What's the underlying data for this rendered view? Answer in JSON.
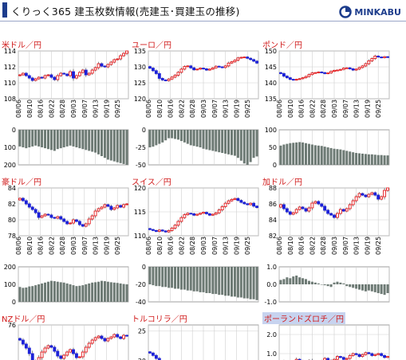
{
  "header": {
    "title": "くりっく365 建玉枚数情報(売建玉･買建玉の推移)",
    "brand": "MINKABU",
    "brand_color": "#1d3d8c"
  },
  "colors": {
    "up": "#e41a1c",
    "down": "#1d22d8",
    "wick": "#555555",
    "bar": "#6d7a74",
    "grid": "#cfcfcf",
    "title": "#d01818"
  },
  "x_labels": [
    "08/06",
    "08/10",
    "08/16",
    "08/22",
    "08/28",
    "09/03",
    "09/07",
    "09/13",
    "09/19",
    "09/25"
  ],
  "panels": [
    {
      "id": "usdjpy",
      "title": "米ドル／円",
      "price_ticks": [
        "114",
        "112",
        "110",
        "108"
      ],
      "price_range": [
        108,
        114
      ],
      "price_path": [
        110.9,
        111.0,
        111.2,
        110.9,
        110.6,
        110.3,
        110.5,
        110.7,
        110.6,
        110.9,
        111.0,
        110.7,
        110.4,
        110.9,
        111.2,
        111.1,
        110.9,
        111.4,
        110.6,
        110.9,
        111.3,
        111.6,
        111.0,
        111.2,
        111.6,
        111.9,
        112.4,
        112.1,
        112.0,
        112.3,
        112.6,
        112.9,
        113.0,
        113.4,
        113.7,
        114.2
      ],
      "volume_ticks": [
        "0",
        "100",
        "200"
      ],
      "volume_range": [
        0,
        200
      ],
      "volume_values": [
        95,
        100,
        105,
        100,
        95,
        90,
        95,
        100,
        105,
        110,
        115,
        120,
        110,
        105,
        100,
        95,
        90,
        95,
        100,
        105,
        110,
        115,
        120,
        125,
        130,
        140,
        150,
        160,
        170,
        175,
        180,
        185,
        190,
        195,
        200
      ]
    },
    {
      "id": "eurjpy",
      "title": "ユーロ／円",
      "price_ticks": [
        "135",
        "130",
        "125",
        "120"
      ],
      "price_range": [
        120,
        135
      ],
      "price_path": [
        130.1,
        129.6,
        128.8,
        127.9,
        126.4,
        125.9,
        125.7,
        126.2,
        126.8,
        127.4,
        128.3,
        129.3,
        130.1,
        130.3,
        129.7,
        129.1,
        129.3,
        129.6,
        129.4,
        129.0,
        129.3,
        129.7,
        130.2,
        130.0,
        129.8,
        130.3,
        131.2,
        131.6,
        132.1,
        132.8,
        133.0,
        133.1,
        132.7,
        132.3,
        131.8,
        131.2
      ],
      "volume_ticks": [
        "0",
        "-25",
        "-50"
      ],
      "volume_range": [
        -50,
        0
      ],
      "volume_values": [
        -25,
        -24,
        -22,
        -20,
        -18,
        -15,
        -12,
        -12,
        -13,
        -14,
        -16,
        -18,
        -20,
        -22,
        -23,
        -24,
        -25,
        -27,
        -28,
        -29,
        -30,
        -31,
        -32,
        -33,
        -34,
        -35,
        -36,
        -37,
        -40,
        -44,
        -48,
        -50,
        -46,
        -40,
        -38
      ]
    },
    {
      "id": "gbpjpy",
      "title": "ポンド／円",
      "price_ticks": [
        "150",
        "145",
        "140",
        "135"
      ],
      "price_range": [
        135,
        150
      ],
      "price_path": [
        143.2,
        142.9,
        142.1,
        141.6,
        141.1,
        140.9,
        141.1,
        141.3,
        141.6,
        142.0,
        142.6,
        143.1,
        143.2,
        143.4,
        143.2,
        142.9,
        143.1,
        143.6,
        143.9,
        144.0,
        144.2,
        144.6,
        144.7,
        144.4,
        144.0,
        144.3,
        144.8,
        145.3,
        146.0,
        146.9,
        147.6,
        148.4,
        148.1,
        147.9,
        148.2,
        148.0
      ],
      "volume_ticks": [
        "100",
        "50",
        "0"
      ],
      "volume_range": [
        0,
        100
      ],
      "volume_values": [
        55,
        58,
        60,
        62,
        63,
        64,
        65,
        64,
        62,
        60,
        58,
        56,
        55,
        54,
        52,
        50,
        48,
        46,
        45,
        44,
        42,
        40,
        38,
        36,
        34,
        33,
        32,
        31,
        30,
        30,
        29,
        28,
        28,
        27,
        27
      ]
    },
    {
      "id": "audjpy",
      "title": "豪ドル／円",
      "price_ticks": [
        "84",
        "82",
        "80",
        "78"
      ],
      "price_range": [
        78,
        84
      ],
      "price_path": [
        82.5,
        82.7,
        82.4,
        82.0,
        81.6,
        81.3,
        80.9,
        80.3,
        80.5,
        80.7,
        80.6,
        80.3,
        80.2,
        80.4,
        80.1,
        79.8,
        79.5,
        79.6,
        80.0,
        79.8,
        79.4,
        79.2,
        79.5,
        80.1,
        80.5,
        81.1,
        81.4,
        81.6,
        81.9,
        81.7,
        81.3,
        81.5,
        81.8,
        81.6,
        81.9,
        82.0
      ],
      "volume_ticks": [
        "200",
        "100",
        "0"
      ],
      "volume_range": [
        0,
        200
      ],
      "volume_values": [
        85,
        80,
        82,
        88,
        90,
        95,
        100,
        105,
        110,
        115,
        120,
        118,
        115,
        112,
        110,
        105,
        100,
        95,
        90,
        92,
        95,
        100,
        105,
        110,
        112,
        115,
        120,
        118,
        115,
        112,
        110,
        108,
        105,
        102,
        100
      ]
    },
    {
      "id": "chfjpy",
      "title": "スイス／円",
      "price_ticks": [
        "120",
        "115",
        "110"
      ],
      "price_range": [
        110,
        120
      ],
      "price_path": [
        111.5,
        111.3,
        111.1,
        110.9,
        111.2,
        111.0,
        110.8,
        111.1,
        111.6,
        112.2,
        113.0,
        113.8,
        114.4,
        114.7,
        114.6,
        114.3,
        114.5,
        114.7,
        114.9,
        114.6,
        114.3,
        114.5,
        114.8,
        115.4,
        116.1,
        116.8,
        117.3,
        117.6,
        117.8,
        117.4,
        117.0,
        116.7,
        116.5,
        116.8,
        116.2,
        115.9
      ],
      "volume_ticks": [
        "0",
        "-20",
        "-40"
      ],
      "volume_range": [
        -40,
        0
      ],
      "volume_values": [
        -20,
        -21,
        -22,
        -22,
        -23,
        -23,
        -24,
        -24,
        -25,
        -25,
        -26,
        -26,
        -27,
        -27,
        -28,
        -28,
        -29,
        -29,
        -30,
        -30,
        -31,
        -31,
        -32,
        -32,
        -33,
        -33,
        -34,
        -34,
        -35,
        -35,
        -36,
        -36,
        -37,
        -37,
        -38
      ]
    },
    {
      "id": "cadjpy",
      "title": "加ドル／円",
      "price_ticks": [
        "88",
        "86",
        "84",
        "82"
      ],
      "price_range": [
        82,
        88
      ],
      "price_path": [
        85.6,
        85.9,
        85.4,
        85.0,
        84.7,
        84.9,
        85.3,
        85.6,
        85.4,
        85.1,
        85.5,
        86.1,
        86.3,
        86.0,
        85.7,
        85.2,
        84.8,
        84.6,
        84.3,
        84.8,
        85.3,
        85.1,
        85.4,
        85.9,
        86.4,
        86.9,
        87.3,
        87.1,
        86.9,
        87.2,
        87.4,
        87.1,
        86.6,
        86.9,
        87.7,
        88.1
      ],
      "volume_ticks": [
        "1.0",
        "0.0",
        "-1.0"
      ],
      "volume_range": [
        -1,
        1
      ],
      "volume_values": [
        0.25,
        0.3,
        0.4,
        0.35,
        0.45,
        0.5,
        0.4,
        0.35,
        0.3,
        0.2,
        0.15,
        0.1,
        0.05,
        0.0,
        -0.05,
        -0.1,
        -0.15,
        0.1,
        0.15,
        0.1,
        0.05,
        -0.1,
        -0.15,
        -0.2,
        -0.25,
        -0.3,
        -0.35,
        -0.4,
        -0.35,
        -0.4,
        -0.45,
        -0.5,
        -0.55,
        -0.6,
        -0.5
      ]
    },
    {
      "id": "nzdjpy",
      "title": "NZドル／円",
      "price_ticks": [
        "76"
      ],
      "price_range": [
        70,
        76
      ],
      "price_path": [
        74.3,
        74.1,
        73.6,
        73.1,
        72.4,
        71.5,
        71.2,
        71.9,
        72.6,
        73.1,
        73.4,
        73.2,
        72.7,
        72.1,
        71.8,
        72.2,
        72.6,
        72.9,
        72.4,
        71.9,
        72.0,
        72.6,
        73.2,
        73.7,
        74.1,
        74.4,
        74.6,
        74.3,
        74.0,
        74.3,
        74.5,
        74.8,
        74.5,
        74.3,
        74.7,
        74.6
      ],
      "volume_ticks": [],
      "volume_range": [
        0,
        100
      ],
      "volume_values": []
    },
    {
      "id": "tryjpy",
      "title": "トルコリラ／円",
      "price_ticks": [
        "25",
        "20"
      ],
      "price_range": [
        18,
        26
      ],
      "price_path": [
        21.5,
        21.3,
        20.9,
        20.4,
        19.9,
        19.6,
        19.3,
        19.1,
        19.4,
        19.6,
        19.5,
        19.2,
        19.0,
        19.1,
        19.4,
        19.2,
        18.9,
        18.6,
        18.5,
        18.7,
        19.0,
        19.2,
        19.5,
        19.6,
        19.4,
        19.2,
        19.3,
        19.5,
        19.7,
        19.6,
        19.4,
        19.3,
        19.1,
        18.9,
        19.1,
        18.8
      ],
      "volume_ticks": [],
      "volume_range": [
        0,
        100
      ],
      "volume_values": []
    },
    {
      "id": "plnjpy",
      "title": "ポーランドズロチ／円",
      "price_ticks": [
        "2.0",
        "1.0"
      ],
      "price_range": [
        0,
        2.5
      ],
      "price_path": [
        0.35,
        0.45,
        0.6,
        0.55,
        0.4,
        0.5,
        0.7,
        0.6,
        0.45,
        0.55,
        0.65,
        0.5,
        0.35,
        0.45,
        0.6,
        0.75,
        0.65,
        0.55,
        0.7,
        0.85,
        0.8,
        0.7,
        0.75,
        0.9,
        1.0,
        0.95,
        0.85,
        0.95,
        1.05,
        1.0,
        0.9,
        0.95,
        1.0,
        0.9,
        0.8,
        0.85
      ],
      "volume_ticks": [],
      "volume_range": [
        0,
        100
      ],
      "volume_values": []
    }
  ]
}
